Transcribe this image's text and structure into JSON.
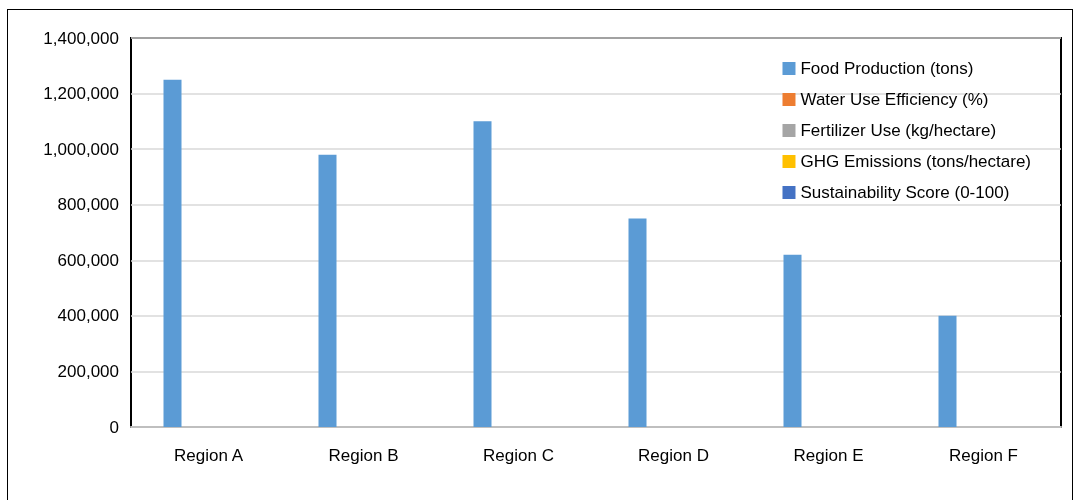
{
  "chart_data": {
    "type": "bar",
    "categories": [
      "Region A",
      "Region B",
      "Region C",
      "Region D",
      "Region E",
      "Region F"
    ],
    "series": [
      {
        "name": "Food Production (tons)",
        "color": "#5b9bd5",
        "values": [
          1250000,
          980000,
          1100000,
          750000,
          620000,
          400000
        ]
      },
      {
        "name": "Water Use Efficiency (%)",
        "color": "#ed7d31",
        "values": [
          0,
          0,
          0,
          0,
          0,
          0
        ]
      },
      {
        "name": "Fertilizer Use (kg/hectare)",
        "color": "#a5a5a5",
        "values": [
          0,
          0,
          0,
          0,
          0,
          0
        ]
      },
      {
        "name": "GHG Emissions (tons/hectare)",
        "color": "#ffc000",
        "values": [
          0,
          0,
          0,
          0,
          0,
          0
        ]
      },
      {
        "name": "Sustainability Score (0-100)",
        "color": "#4472c4",
        "values": [
          0,
          0,
          0,
          0,
          0,
          0
        ]
      }
    ],
    "ylim": [
      0,
      1400000
    ],
    "yticks": [
      0,
      {
        "value": 200000,
        "label": "200,000"
      },
      {
        "value": 400000,
        "label": "400,000"
      },
      {
        "value": 600000,
        "label": "600,000"
      },
      {
        "value": 800000,
        "label": "800,000"
      },
      {
        "value": 1000000,
        "label": "1,000,000"
      },
      {
        "value": 1200000,
        "label": "1,200,000"
      },
      {
        "value": 1400000,
        "label": "1,400,000"
      }
    ],
    "grid": "y",
    "legend": "top right"
  }
}
